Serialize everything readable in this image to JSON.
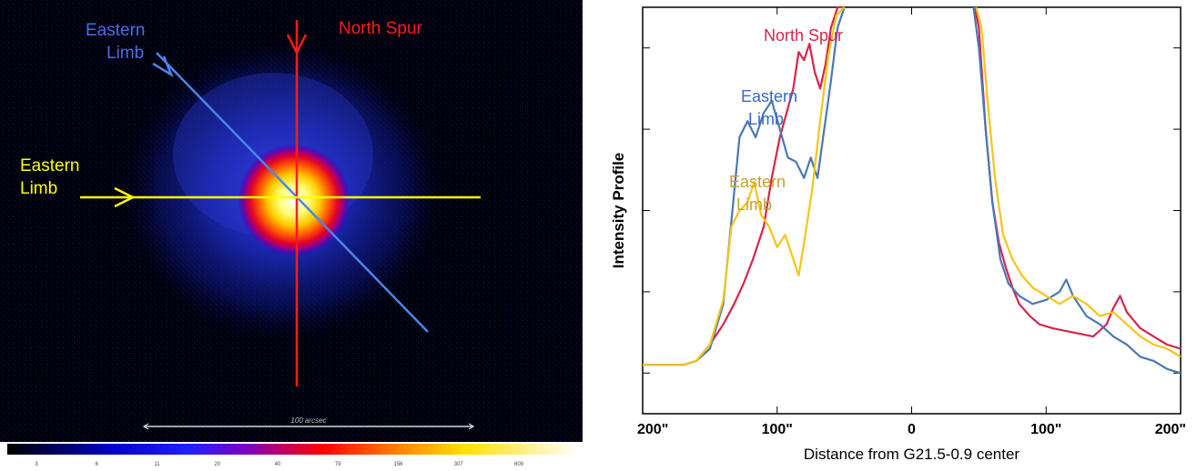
{
  "image_panel": {
    "labels": {
      "north_spur": "North Spur",
      "eastern_limb_blue": [
        "Eastern",
        "Limb"
      ],
      "eastern_limb_yellow": [
        "Eastern",
        "Limb"
      ]
    },
    "scale_bar_label": "100 arcsec",
    "colorbar_ticks": [
      "3",
      "6",
      "11",
      "20",
      "40",
      "79",
      "156",
      "307",
      "609"
    ],
    "colors": {
      "blue_line": "#4a86e8",
      "red_line": "#ff1a1a",
      "yellow_line": "#ffff00"
    }
  },
  "chart_data": {
    "type": "line",
    "xlabel": "Distance from G21.5-0.9 center",
    "ylabel": "Intensity Profile",
    "xlim": [
      -200,
      200
    ],
    "x_tick_labels": [
      {
        "value": -200,
        "label": "200\""
      },
      {
        "value": -100,
        "label": "100\""
      },
      {
        "value": 0,
        "label": "0"
      },
      {
        "value": 100,
        "label": "100\""
      },
      {
        "value": 200,
        "label": "200\""
      }
    ],
    "y_scale": "arbitrary (no numeric tick labels)",
    "ylim": [
      0,
      1
    ],
    "series": [
      {
        "name": "North Spur",
        "color": "#d6254a",
        "x": [
          -200,
          -185,
          -170,
          -160,
          -150,
          -140,
          -132,
          -125,
          -118,
          -110,
          -104,
          -98,
          -93,
          -88,
          -84,
          -80,
          -76,
          -72,
          -68,
          -64,
          -60,
          -55,
          -50,
          47,
          50,
          55,
          60,
          65,
          70,
          75,
          80,
          88,
          95,
          105,
          120,
          135,
          145,
          150,
          155,
          160,
          170,
          180,
          190,
          200
        ],
        "y": [
          0.12,
          0.12,
          0.12,
          0.13,
          0.17,
          0.22,
          0.27,
          0.32,
          0.38,
          0.46,
          0.58,
          0.68,
          0.74,
          0.8,
          0.89,
          0.87,
          0.91,
          0.84,
          0.8,
          0.86,
          0.95,
          1.02,
          1.05,
          1.05,
          0.95,
          0.7,
          0.52,
          0.42,
          0.36,
          0.31,
          0.27,
          0.24,
          0.22,
          0.21,
          0.2,
          0.19,
          0.22,
          0.26,
          0.29,
          0.25,
          0.21,
          0.19,
          0.17,
          0.16
        ]
      },
      {
        "name": "Eastern Limb",
        "color": "#4a78b4",
        "x": [
          -200,
          -185,
          -170,
          -160,
          -150,
          -140,
          -135,
          -128,
          -122,
          -116,
          -110,
          -104,
          -98,
          -92,
          -86,
          -80,
          -75,
          -70,
          -65,
          -60,
          -55,
          -50,
          46,
          50,
          55,
          60,
          66,
          72,
          80,
          90,
          100,
          110,
          115,
          120,
          130,
          140,
          150,
          160,
          170,
          180,
          190,
          200
        ],
        "y": [
          0.12,
          0.12,
          0.12,
          0.13,
          0.16,
          0.27,
          0.44,
          0.68,
          0.72,
          0.68,
          0.74,
          0.77,
          0.7,
          0.63,
          0.62,
          0.58,
          0.63,
          0.58,
          0.7,
          0.82,
          0.95,
          1.05,
          1.05,
          0.9,
          0.7,
          0.52,
          0.38,
          0.32,
          0.29,
          0.27,
          0.28,
          0.3,
          0.33,
          0.29,
          0.24,
          0.22,
          0.19,
          0.17,
          0.14,
          0.13,
          0.11,
          0.1
        ]
      },
      {
        "name": "Eastern Limb",
        "color": "#f5c518",
        "x": [
          -200,
          -185,
          -170,
          -160,
          -150,
          -140,
          -134,
          -128,
          -122,
          -117,
          -112,
          -106,
          -100,
          -94,
          -88,
          -84,
          -80,
          -74,
          -68,
          -62,
          -56,
          -50,
          48,
          52,
          57,
          62,
          68,
          75,
          82,
          90,
          100,
          110,
          120,
          130,
          140,
          150,
          160,
          170,
          180,
          190,
          200
        ],
        "y": [
          0.12,
          0.12,
          0.12,
          0.13,
          0.17,
          0.28,
          0.46,
          0.5,
          0.52,
          0.57,
          0.49,
          0.46,
          0.41,
          0.44,
          0.38,
          0.34,
          0.42,
          0.55,
          0.72,
          0.88,
          0.98,
          1.05,
          1.05,
          0.95,
          0.75,
          0.58,
          0.44,
          0.38,
          0.34,
          0.31,
          0.29,
          0.27,
          0.29,
          0.27,
          0.24,
          0.25,
          0.22,
          0.19,
          0.17,
          0.16,
          0.14
        ]
      }
    ],
    "annotations": [
      {
        "text": "North Spur",
        "color": "#d6254a"
      },
      {
        "text": [
          "Eastern",
          "Limb"
        ],
        "color": "#3a67c9"
      },
      {
        "text": [
          "Eastern",
          "Limb"
        ],
        "color": "#c9a12a"
      }
    ]
  }
}
